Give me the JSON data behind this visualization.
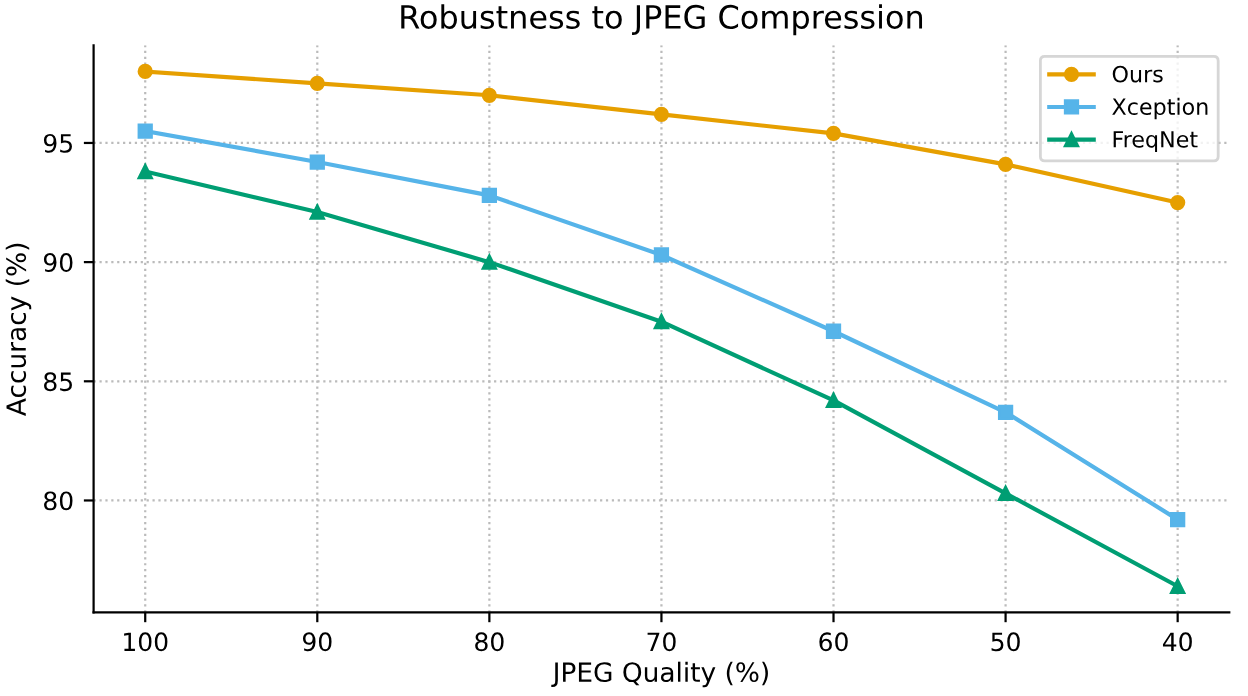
{
  "chart_data": {
    "type": "line",
    "title": "Robustness to JPEG Compression",
    "xlabel": "JPEG Quality (%)",
    "ylabel": "Accuracy (%)",
    "x": [
      100,
      90,
      80,
      70,
      60,
      50,
      40
    ],
    "series": [
      {
        "name": "Ours",
        "color": "#e69f00",
        "marker": "circle",
        "values": [
          98.0,
          97.5,
          97.0,
          96.2,
          95.4,
          94.1,
          92.5
        ]
      },
      {
        "name": "Xception",
        "color": "#56b4e9",
        "marker": "square",
        "values": [
          95.5,
          94.2,
          92.8,
          90.3,
          87.1,
          83.7,
          79.2
        ]
      },
      {
        "name": "FreqNet",
        "color": "#009e73",
        "marker": "triangle",
        "values": [
          93.8,
          92.1,
          90.0,
          87.5,
          84.2,
          80.3,
          76.4
        ]
      }
    ],
    "xlim": [
      103,
      37
    ],
    "xticks": [
      100,
      90,
      80,
      70,
      60,
      50,
      40
    ],
    "ylim": [
      75.3,
      99.1
    ],
    "yticks": [
      80,
      85,
      90,
      95
    ],
    "grid": true,
    "legend": "top right",
    "line_style": "solid"
  }
}
